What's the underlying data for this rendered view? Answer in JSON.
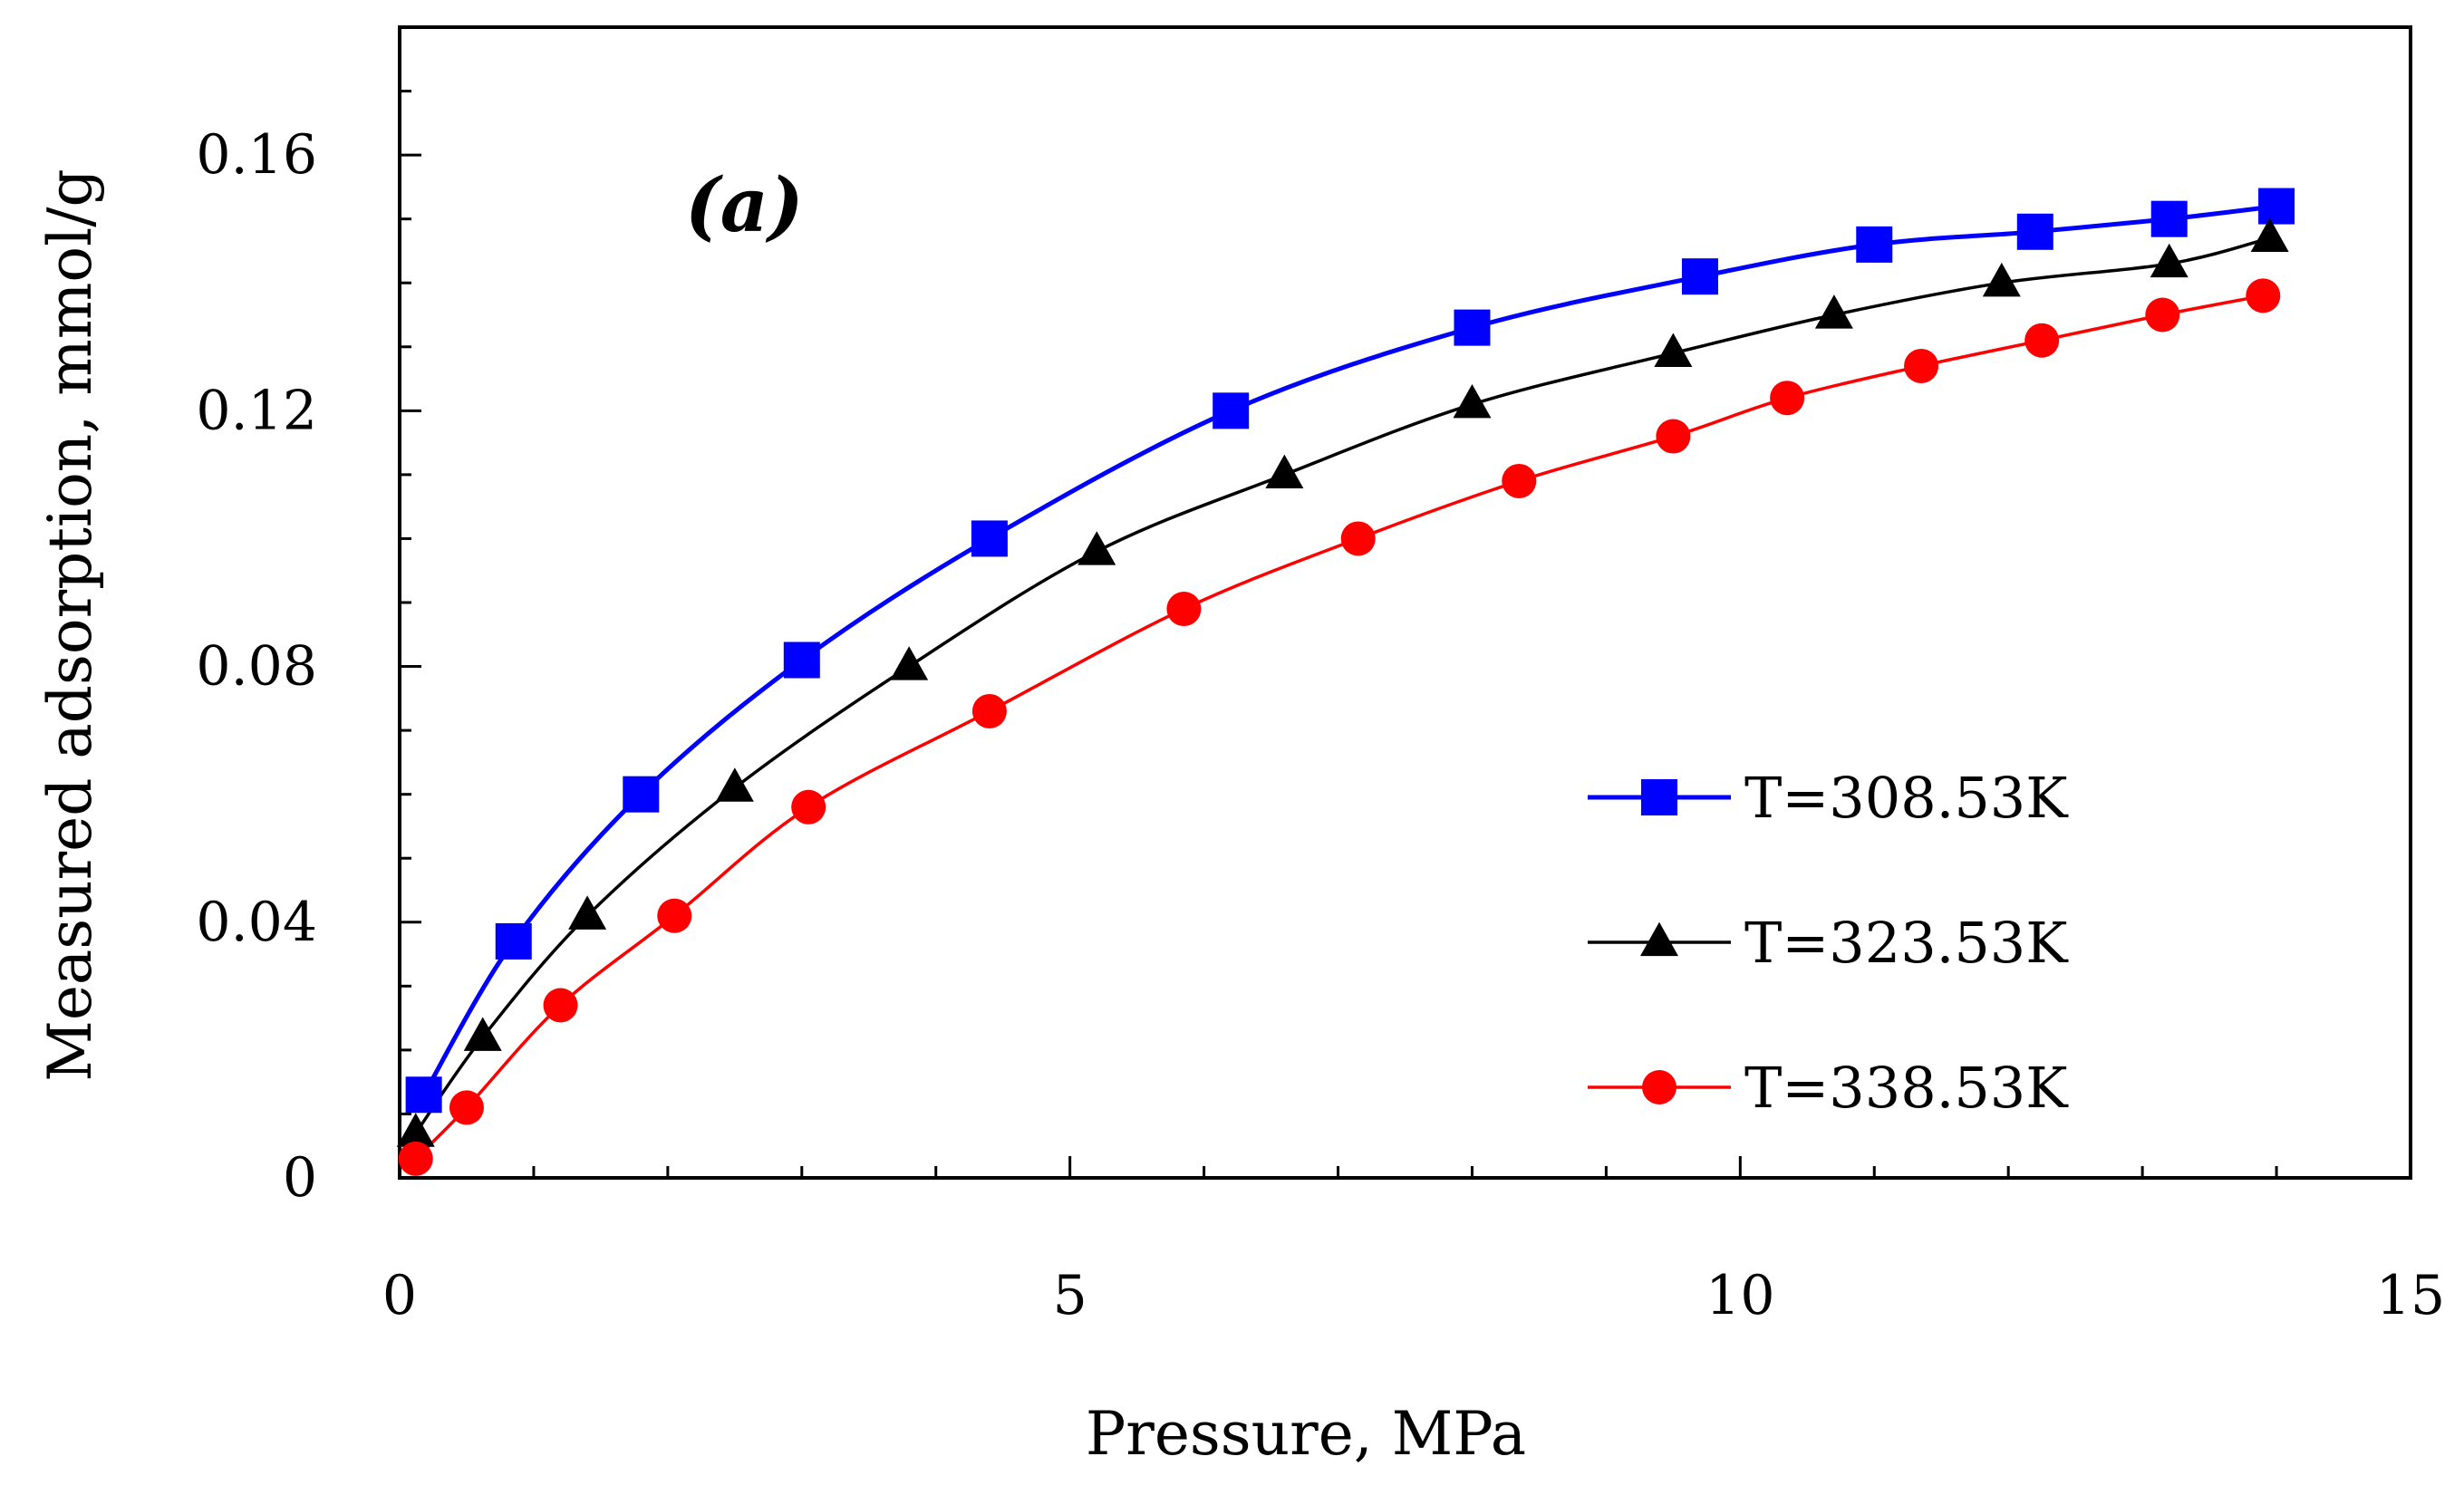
{
  "chart_data": {
    "type": "line",
    "panel_label": "(a)",
    "xlabel": "Pressure, MPa",
    "ylabel": "Measured adsorption, mmol/g",
    "xlim": [
      0,
      15
    ],
    "ylim": [
      0,
      0.18
    ],
    "x_ticks": [
      0,
      5,
      10,
      15
    ],
    "x_tick_labels": [
      "0",
      "5",
      "10",
      "15"
    ],
    "y_ticks": [
      0,
      0.04,
      0.08,
      0.12,
      0.16
    ],
    "y_tick_labels": [
      "0",
      "0.04",
      "0.08",
      "0.12",
      "0.16"
    ],
    "grid": false,
    "legend_position": "right",
    "series": [
      {
        "name": "T=308.53K",
        "color": "#0000ff",
        "marker": "square",
        "x": [
          0.18,
          0.85,
          1.8,
          3.0,
          4.4,
          6.2,
          8.0,
          9.7,
          11.0,
          12.2,
          13.2,
          14.0
        ],
        "y": [
          0.013,
          0.037,
          0.06,
          0.081,
          0.1,
          0.12,
          0.133,
          0.141,
          0.146,
          0.148,
          0.15,
          0.152
        ]
      },
      {
        "name": "T=323.53K",
        "color": "#000000",
        "marker": "triangle",
        "x": [
          0.12,
          0.62,
          1.4,
          2.5,
          3.8,
          5.2,
          6.6,
          8.0,
          9.5,
          10.7,
          11.95,
          13.2,
          13.95
        ],
        "y": [
          0.007,
          0.022,
          0.041,
          0.061,
          0.08,
          0.098,
          0.11,
          0.121,
          0.129,
          0.135,
          0.14,
          0.143,
          0.147
        ]
      },
      {
        "name": "T=338.53K",
        "color": "#ff0000",
        "marker": "circle",
        "x": [
          0.12,
          0.5,
          1.2,
          2.05,
          3.05,
          4.4,
          5.85,
          7.15,
          8.35,
          9.5,
          10.35,
          11.35,
          12.25,
          13.15,
          13.9
        ],
        "y": [
          0.003,
          0.011,
          0.027,
          0.041,
          0.058,
          0.073,
          0.089,
          0.1,
          0.109,
          0.116,
          0.122,
          0.127,
          0.131,
          0.135,
          0.138
        ]
      }
    ]
  }
}
